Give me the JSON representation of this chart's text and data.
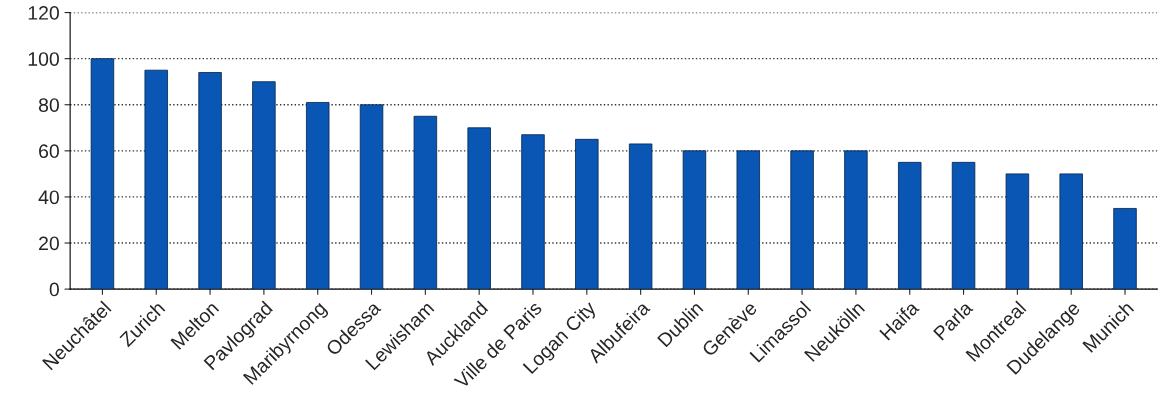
{
  "chart_data": {
    "type": "bar",
    "categories": [
      "Neuchâtel",
      "Zurich",
      "Melton",
      "Pavlograd",
      "Maribyrnong",
      "Odessa",
      "Lewisham",
      "Auckland",
      "Ville de Paris",
      "Logan City",
      "Albufeira",
      "Dublin",
      "Genève",
      "Limassol",
      "Neukölln",
      "Haifa",
      "Parla",
      "Montreal",
      "Dudelange",
      "Munich"
    ],
    "values": [
      100,
      95,
      94,
      90,
      81,
      80,
      75,
      70,
      67,
      65,
      63,
      60,
      60,
      60,
      60,
      55,
      55,
      50,
      50,
      35
    ],
    "color": "#0a56b4",
    "ylim": [
      0,
      120
    ],
    "yticks": [
      0,
      20,
      40,
      60,
      80,
      100,
      120
    ],
    "grid": "y"
  }
}
